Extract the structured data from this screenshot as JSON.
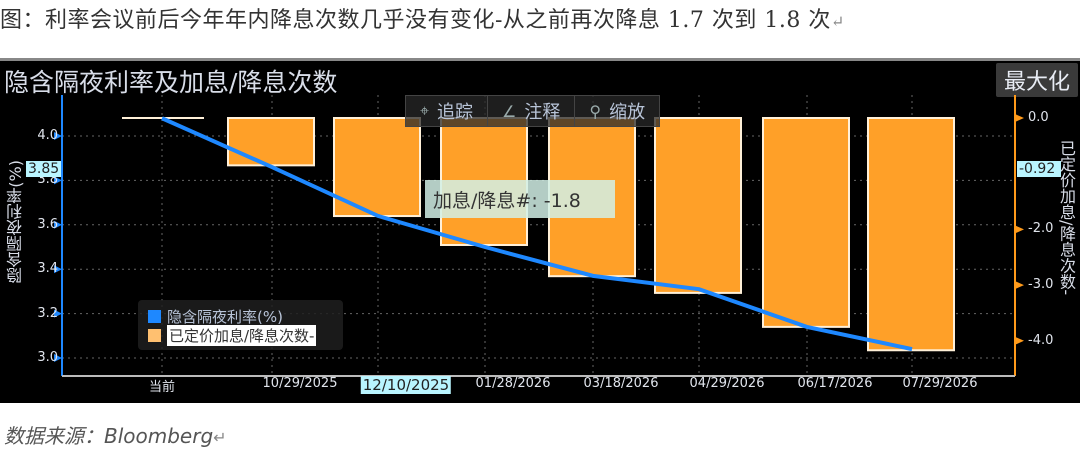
{
  "caption": "图：利率会议前后今年年内降息次数几乎没有变化-从之前再次降息 1.7 次到 1.8 次",
  "source": "数据来源：Bloomberg",
  "panel": {
    "title": "隐含隔夜利率及加息/降息次数",
    "maximize_label": "最大化",
    "toolbar": {
      "track_label": "追踪",
      "annotate_label": "注释",
      "zoom_label": "缩放",
      "track_icon": "crosshair-icon",
      "annotate_icon": "pencil-icon",
      "zoom_icon": "magnifier-icon"
    },
    "tooltip": "加息/降息#:  -1.8",
    "left_axis_highlight": "3.85",
    "right_axis_highlight": "-0.92",
    "x_highlight": "12/10/2025",
    "legend": {
      "line_label": "隐含隔夜利率(%)",
      "bar_label": "已定价加息/降息次数-"
    }
  },
  "colors": {
    "line": "#1e88ff",
    "bar": "#ffa028",
    "bar_border": "#fff0d8",
    "axis_left": "#1e88ff",
    "axis_right": "#ff9a1a",
    "highlight": "#b9f5ff",
    "background": "#000000"
  },
  "chart_data": {
    "type": "bar+line",
    "title": "隐含隔夜利率及加息/降息次数",
    "categories": [
      "当前",
      "10/29/2025",
      "12/10/2025",
      "01/28/2026",
      "03/18/2026",
      "04/29/2026",
      "06/17/2026",
      "07/29/2026"
    ],
    "series": [
      {
        "name": "已定价加息/降息次数-",
        "type": "bar",
        "axis": "right",
        "values": [
          0.0,
          -0.85,
          -1.76,
          -2.28,
          -2.84,
          -3.14,
          -3.75,
          -4.17
        ]
      },
      {
        "name": "隐含隔夜利率(%)",
        "type": "line",
        "axis": "left",
        "values": [
          4.08,
          3.86,
          3.64,
          3.5,
          3.37,
          3.31,
          3.14,
          3.04
        ]
      }
    ],
    "ylabel_left": "隐含隔夜利率(%)",
    "ylabel_right": "已定价加息/降息次数-",
    "left_ticks": [
      "4.0",
      "3.8",
      "3.6",
      "3.4",
      "3.2",
      "3.0"
    ],
    "right_ticks": [
      "0.0",
      "-2.0",
      "-3.0",
      "-4.0"
    ],
    "ylim_left": [
      2.92,
      4.2
    ],
    "ylim_right": [
      -4.6,
      0.4
    ],
    "grid": true,
    "legend_position": "lower-left"
  }
}
